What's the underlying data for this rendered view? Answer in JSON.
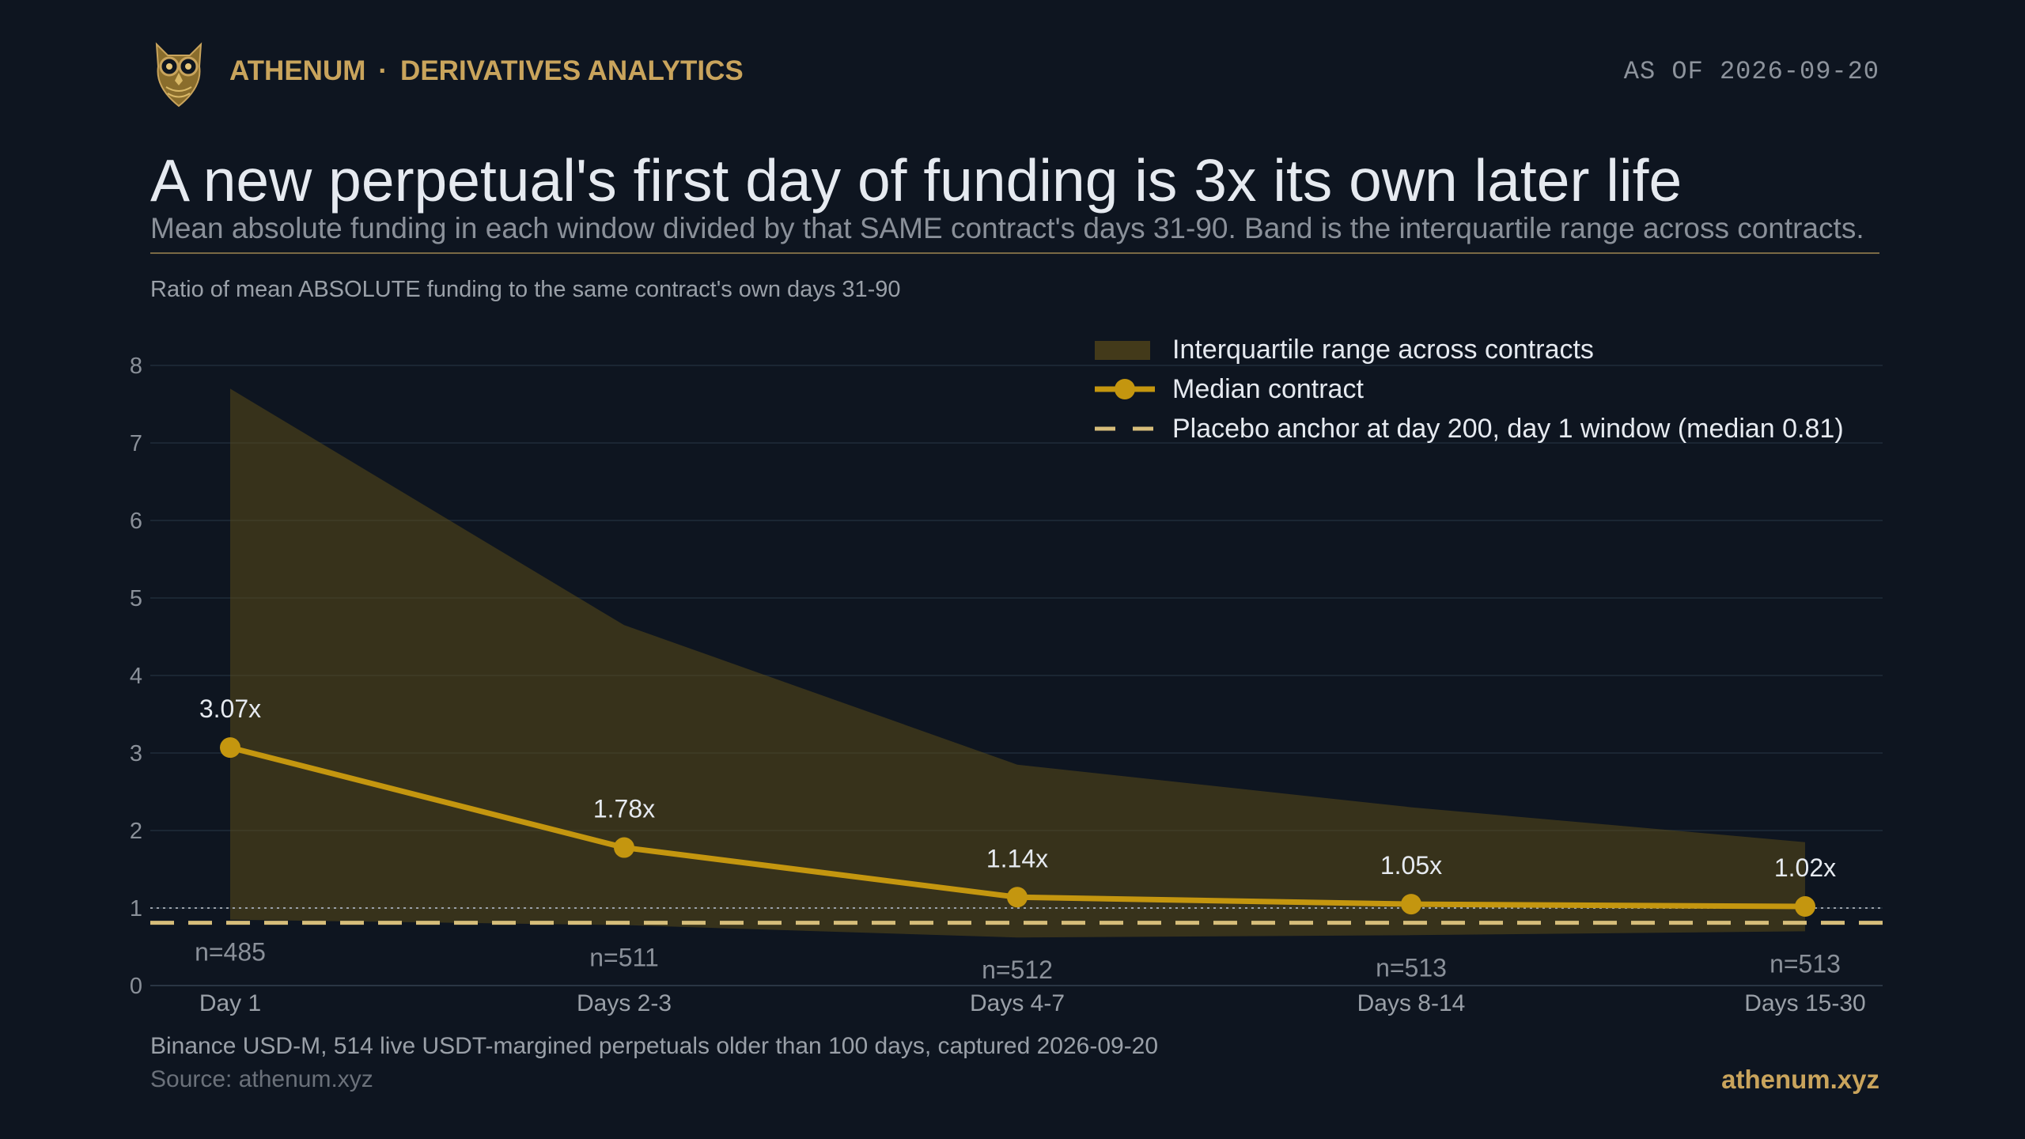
{
  "header": {
    "brand": "ATHENUM",
    "separator": "·",
    "section": "DERIVATIVES ANALYTICS",
    "as_of": "AS OF 2026-09-20"
  },
  "title": "A new perpetual's first day of funding is 3x its own later life",
  "subtitle": "Mean absolute funding in each window divided by that SAME contract's days 31-90. Band is the interquartile range across contracts.",
  "footer": {
    "note": "Binance USD-M, 514 live USDT-margined perpetuals older than 100 days, captured 2026-09-20",
    "source": "Source: athenum.xyz",
    "site": "athenum.xyz"
  },
  "colors": {
    "background": "#0e1520",
    "median_line": "#c4960f",
    "band_fill": "#5a4a18",
    "placebo_line": "#d6bd7a",
    "reference_line": "#9aa0a8",
    "grid": "#1b2633",
    "brand": "#c9a45c"
  },
  "chart_data": {
    "type": "line",
    "title": "",
    "ylabel": "Ratio of mean ABSOLUTE funding to the same contract's own days 31-90",
    "xlabel": "",
    "categories": [
      "Day 1",
      "Days 2-3",
      "Days 4-7",
      "Days 8-14",
      "Days 15-30"
    ],
    "ylim": [
      0,
      8
    ],
    "yticks": [
      0,
      1,
      2,
      3,
      4,
      5,
      6,
      7,
      8
    ],
    "grid": true,
    "legend_position": "top-right",
    "series": [
      {
        "name": "Median contract",
        "values": [
          3.07,
          1.78,
          1.14,
          1.05,
          1.02
        ],
        "data_labels": [
          "3.07x",
          "1.78x",
          "1.14x",
          "1.05x",
          "1.02x"
        ]
      }
    ],
    "band": {
      "name": "Interquartile range across contracts",
      "lower": [
        0.85,
        0.78,
        0.62,
        0.65,
        0.7
      ],
      "upper": [
        7.7,
        4.65,
        2.85,
        2.3,
        1.85
      ]
    },
    "placebo": {
      "name": "Placebo anchor at day 200, day 1 window (median 0.81)",
      "value": 0.81
    },
    "reference_line": 1,
    "counts": [
      "n=485",
      "n=511",
      "n=512",
      "n=513",
      "n=513"
    ]
  }
}
